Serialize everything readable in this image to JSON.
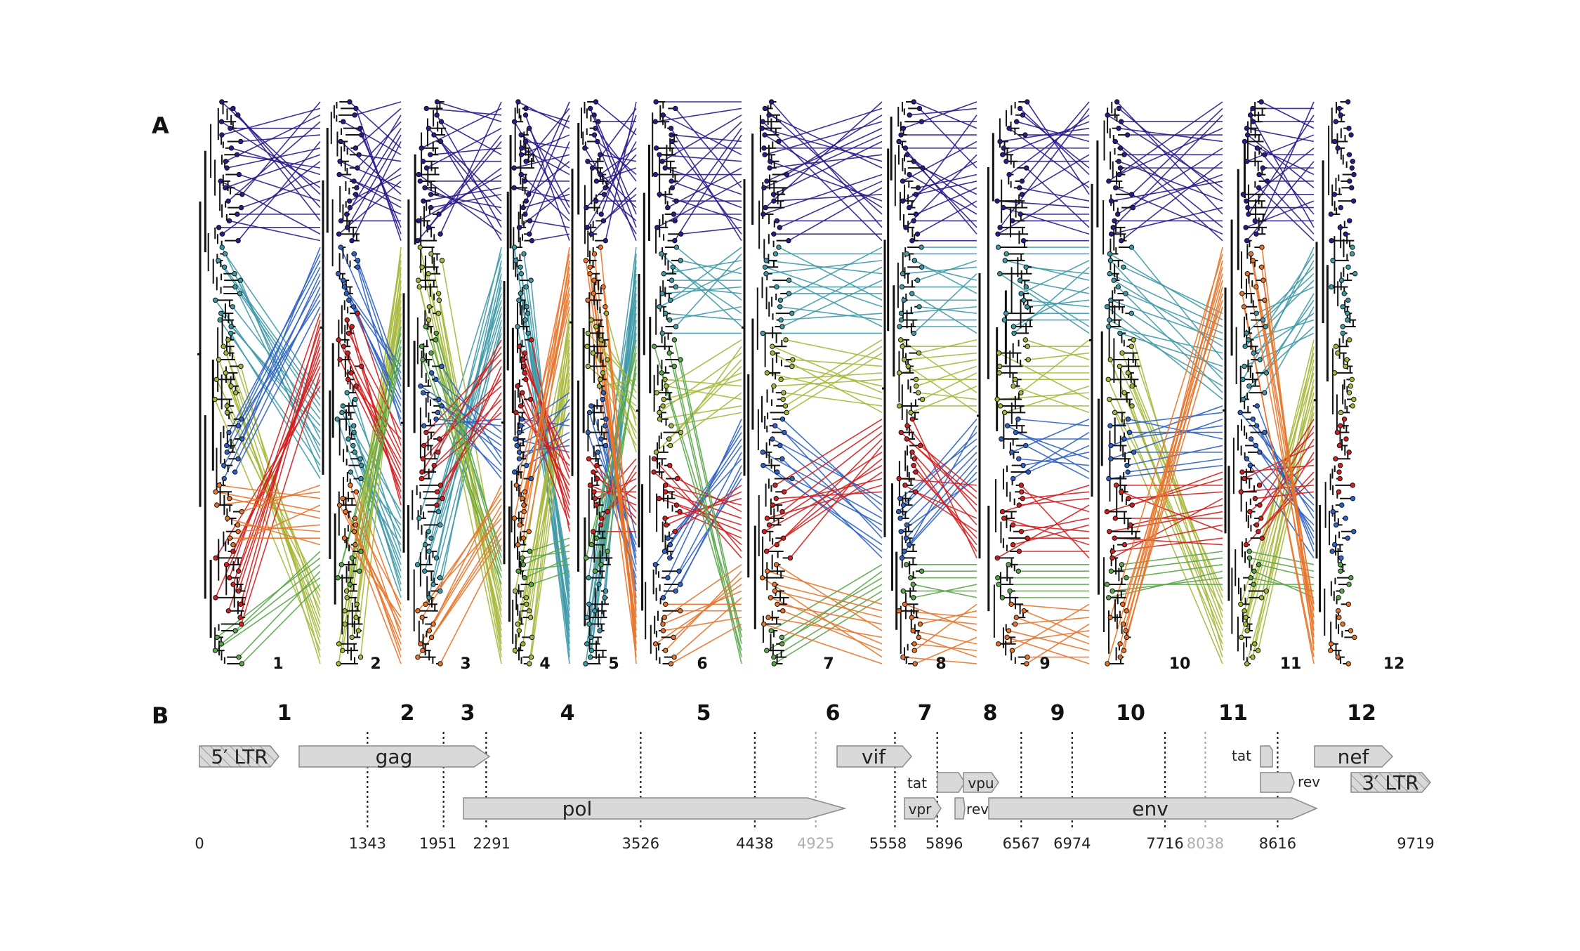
{
  "panel_a": {
    "label": "A",
    "segment_labels": [
      "1",
      "2",
      "3",
      "4",
      "5",
      "6",
      "7",
      "8",
      "9",
      "10",
      "11",
      "12"
    ]
  },
  "panel_b": {
    "label": "B",
    "segment_labels": [
      "1",
      "2",
      "3",
      "4",
      "5",
      "6",
      "7",
      "8",
      "9",
      "10",
      "11",
      "12"
    ],
    "genes": {
      "ltr5": "5′ LTR",
      "gag": "gag",
      "pol": "pol",
      "vif": "vif",
      "tat1": "tat",
      "vpr": "vpr",
      "vpu": "vpu",
      "rev1": "rev",
      "env": "env",
      "tat2": "tat",
      "rev2": "rev",
      "nef": "nef",
      "ltr3": "3′ LTR"
    },
    "axis_ticks": [
      {
        "pos": 0,
        "label": "0",
        "style": "none"
      },
      {
        "pos": 1343,
        "label": "1343",
        "style": "dark"
      },
      {
        "pos": 1951,
        "label": "1951",
        "style": "dark"
      },
      {
        "pos": 2291,
        "label": "2291",
        "style": "dark"
      },
      {
        "pos": 3526,
        "label": "3526",
        "style": "dark"
      },
      {
        "pos": 4438,
        "label": "4438",
        "style": "dark"
      },
      {
        "pos": 4925,
        "label": "4925",
        "style": "light"
      },
      {
        "pos": 5558,
        "label": "5558",
        "style": "dark"
      },
      {
        "pos": 5896,
        "label": "5896",
        "style": "dark"
      },
      {
        "pos": 6567,
        "label": "6567",
        "style": "dark"
      },
      {
        "pos": 6974,
        "label": "6974",
        "style": "dark"
      },
      {
        "pos": 7716,
        "label": "7716",
        "style": "dark"
      },
      {
        "pos": 8038,
        "label": "8038",
        "style": "light"
      },
      {
        "pos": 8616,
        "label": "8616",
        "style": "dark"
      },
      {
        "pos": 9719,
        "label": "9719",
        "style": "none"
      }
    ],
    "colors": {
      "clade_1": "#2b1a8c",
      "clade_2": "#3f9aa8",
      "clade_3": "#a7b83c",
      "clade_4": "#2f62c4",
      "clade_5": "#d11f1f",
      "clade_6": "#5aa64a",
      "clade_7": "#e8742a",
      "gene_fill": "#d9d9d9",
      "gene_stroke": "#8a8a8a"
    }
  }
}
